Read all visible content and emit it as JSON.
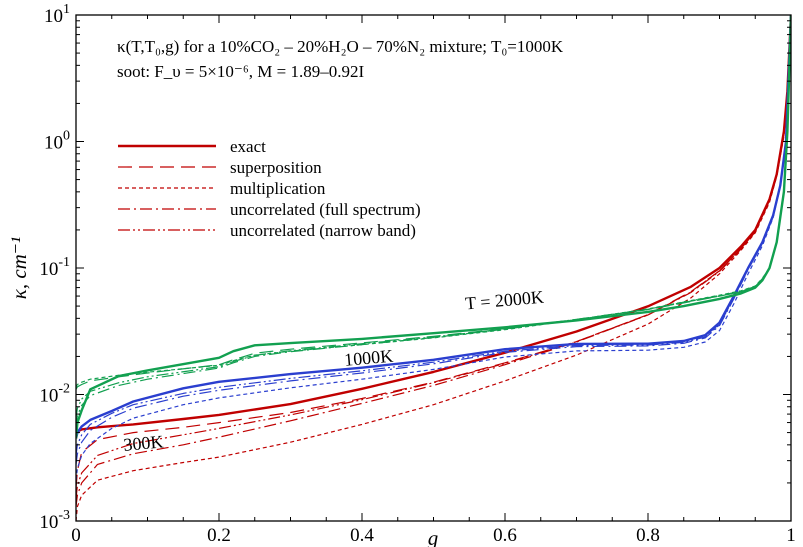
{
  "chart_data": {
    "type": "line",
    "title_lines": [
      "κ(T,T₀,g) for a 10%CO₂ – 20%H₂O – 70%N₂ mixture; T₀=1000K",
      "soot: F_υ = 5×10⁻⁶, M = 1.89–0.92I"
    ],
    "xlabel": "g",
    "ylabel": "κ, cm⁻¹",
    "xlim": [
      0,
      1
    ],
    "ylim": [
      0.001,
      10
    ],
    "yscale": "log",
    "grid": false,
    "x_ticks": [
      {
        "value": 0,
        "label": "0"
      },
      {
        "value": 0.2,
        "label": "0.2"
      },
      {
        "value": 0.4,
        "label": "0.4"
      },
      {
        "value": 0.6,
        "label": "0.6"
      },
      {
        "value": 0.8,
        "label": "0.8"
      },
      {
        "value": 1,
        "label": "1"
      }
    ],
    "y_ticks": [
      {
        "value": 0.001,
        "base": "10",
        "exp": "-3"
      },
      {
        "value": 0.01,
        "base": "10",
        "exp": "-2"
      },
      {
        "value": 0.1,
        "base": "10",
        "exp": "-1"
      },
      {
        "value": 1,
        "base": "10",
        "exp": "0"
      },
      {
        "value": 10,
        "base": "10",
        "exp": "1"
      }
    ],
    "legend_position": "upper-left",
    "legend": [
      {
        "label": "exact",
        "dash": "solid"
      },
      {
        "label": "superposition",
        "dash": "long-dash"
      },
      {
        "label": "multiplication",
        "dash": "short-dash"
      },
      {
        "label": "uncorrelated (full spectrum)",
        "dash": "dash-dot"
      },
      {
        "label": "uncorrelated (narrow band)",
        "dash": "dash-dot-dot"
      }
    ],
    "curve_labels": [
      {
        "text": "T = 2000K",
        "x": 0.6,
        "y": 0.05,
        "color": "#000000"
      },
      {
        "text": "1000K",
        "x": 0.41,
        "y": 0.0175,
        "color": "#000000"
      },
      {
        "text": "300K",
        "x": 0.095,
        "y": 0.0037,
        "color": "#000000"
      }
    ],
    "series": [
      {
        "temperature": "300K",
        "method": "exact",
        "color": "#c00000",
        "dash": "solid",
        "width": 2.4,
        "x": [
          0,
          0.002,
          0.008,
          0.03,
          0.08,
          0.15,
          0.2,
          0.3,
          0.4,
          0.5,
          0.6,
          0.7,
          0.8,
          0.86,
          0.9,
          0.93,
          0.95,
          0.97,
          0.98,
          0.99,
          0.995,
          1.0
        ],
        "y": [
          0.0045,
          0.0051,
          0.0053,
          0.0055,
          0.0058,
          0.0064,
          0.0069,
          0.0084,
          0.0111,
          0.0151,
          0.0214,
          0.0315,
          0.0498,
          0.071,
          0.1,
          0.148,
          0.2,
          0.35,
          0.55,
          1.2,
          2.5,
          10
        ]
      },
      {
        "temperature": "300K",
        "method": "superposition",
        "color": "#c00000",
        "dash": "long-dash",
        "width": 1.2,
        "x": [
          0,
          0.002,
          0.008,
          0.03,
          0.08,
          0.15,
          0.2,
          0.3,
          0.4,
          0.5,
          0.6,
          0.7,
          0.8,
          0.86,
          0.9,
          0.93,
          0.95,
          0.97,
          0.98,
          0.99,
          0.995,
          1.0
        ],
        "y": [
          0.0018,
          0.0025,
          0.0035,
          0.0044,
          0.005,
          0.0055,
          0.006,
          0.0072,
          0.0093,
          0.0125,
          0.0178,
          0.0262,
          0.0428,
          0.065,
          0.095,
          0.142,
          0.195,
          0.34,
          0.54,
          1.15,
          2.4,
          10
        ]
      },
      {
        "temperature": "300K",
        "method": "multiplication",
        "color": "#c00000",
        "dash": "short-dash",
        "width": 1.2,
        "x": [
          0,
          0.002,
          0.008,
          0.03,
          0.08,
          0.15,
          0.2,
          0.3,
          0.4,
          0.5,
          0.6,
          0.7,
          0.8,
          0.86,
          0.9,
          0.93,
          0.95,
          0.97,
          0.98,
          0.99,
          0.995,
          1.0
        ],
        "y": [
          0.001,
          0.0013,
          0.0016,
          0.0021,
          0.0025,
          0.0029,
          0.0032,
          0.0042,
          0.0058,
          0.0083,
          0.0128,
          0.0205,
          0.036,
          0.058,
          0.09,
          0.138,
          0.19,
          0.33,
          0.53,
          1.1,
          2.3,
          10
        ]
      },
      {
        "temperature": "300K",
        "method": "uncorrelated (full spectrum)",
        "color": "#c00000",
        "dash": "dash-dot",
        "width": 1.2,
        "x": [
          0,
          0.002,
          0.008,
          0.03,
          0.08,
          0.15,
          0.2,
          0.3,
          0.4,
          0.5,
          0.6,
          0.7,
          0.8,
          0.86,
          0.9,
          0.93,
          0.95,
          0.97,
          0.98,
          0.99,
          0.995,
          1.0
        ],
        "y": [
          0.0013,
          0.0016,
          0.002,
          0.0028,
          0.0034,
          0.004,
          0.0046,
          0.0062,
          0.0085,
          0.0118,
          0.0172,
          0.026,
          0.0425,
          0.064,
          0.094,
          0.141,
          0.193,
          0.34,
          0.54,
          1.15,
          2.4,
          10
        ]
      },
      {
        "temperature": "300K",
        "method": "uncorrelated (narrow band)",
        "color": "#c00000",
        "dash": "dash-dot-dot",
        "width": 1.2,
        "x": [
          0,
          0.002,
          0.008,
          0.03,
          0.08,
          0.15,
          0.2,
          0.3,
          0.4,
          0.5,
          0.6,
          0.7,
          0.8,
          0.86,
          0.9,
          0.93,
          0.95,
          0.97,
          0.98,
          0.99,
          0.995,
          1.0
        ],
        "y": [
          0.0015,
          0.0019,
          0.0024,
          0.0033,
          0.0041,
          0.0048,
          0.0054,
          0.0069,
          0.0091,
          0.0124,
          0.0176,
          0.0262,
          0.0427,
          0.0645,
          0.095,
          0.142,
          0.194,
          0.34,
          0.54,
          1.15,
          2.4,
          10
        ]
      },
      {
        "temperature": "1000K",
        "method": "exact",
        "color": "#2b3fcf",
        "dash": "solid",
        "width": 2.4,
        "x": [
          0,
          0.002,
          0.008,
          0.02,
          0.05,
          0.08,
          0.15,
          0.2,
          0.3,
          0.4,
          0.5,
          0.6,
          0.7,
          0.8,
          0.85,
          0.88,
          0.9,
          0.92,
          0.94,
          0.96,
          0.975,
          0.985,
          0.993,
          1.0
        ],
        "y": [
          0.0045,
          0.005,
          0.0056,
          0.0063,
          0.0074,
          0.0088,
          0.0112,
          0.0126,
          0.0145,
          0.0163,
          0.0188,
          0.0228,
          0.0251,
          0.0252,
          0.0265,
          0.0295,
          0.037,
          0.06,
          0.1,
          0.16,
          0.26,
          0.45,
          1.0,
          10
        ]
      },
      {
        "temperature": "1000K",
        "method": "superposition",
        "color": "#2b3fcf",
        "dash": "long-dash",
        "width": 1.2,
        "x": [
          0,
          0.002,
          0.008,
          0.02,
          0.05,
          0.08,
          0.15,
          0.2,
          0.3,
          0.4,
          0.5,
          0.6,
          0.7,
          0.8,
          0.85,
          0.88,
          0.9,
          0.92,
          0.94,
          0.96,
          0.975,
          0.985,
          0.993,
          1.0
        ],
        "y": [
          0.0045,
          0.005,
          0.0056,
          0.0063,
          0.0074,
          0.0088,
          0.0112,
          0.0126,
          0.0145,
          0.0163,
          0.0188,
          0.0228,
          0.0251,
          0.0252,
          0.0263,
          0.029,
          0.036,
          0.058,
          0.098,
          0.158,
          0.26,
          0.45,
          1.0,
          10
        ]
      },
      {
        "temperature": "1000K",
        "method": "multiplication",
        "color": "#2b3fcf",
        "dash": "short-dash",
        "width": 1.2,
        "x": [
          0,
          0.002,
          0.008,
          0.02,
          0.05,
          0.08,
          0.15,
          0.2,
          0.3,
          0.4,
          0.5,
          0.6,
          0.7,
          0.8,
          0.85,
          0.88,
          0.9,
          0.92,
          0.94,
          0.96,
          0.975,
          0.985,
          0.993,
          1.0
        ],
        "y": [
          0.0021,
          0.0026,
          0.0033,
          0.0041,
          0.0054,
          0.0065,
          0.0083,
          0.0094,
          0.0113,
          0.0132,
          0.0158,
          0.0198,
          0.0221,
          0.0224,
          0.0236,
          0.026,
          0.032,
          0.052,
          0.09,
          0.15,
          0.25,
          0.44,
          1.0,
          10
        ]
      },
      {
        "temperature": "1000K",
        "method": "uncorrelated (full spectrum)",
        "color": "#2b3fcf",
        "dash": "dash-dot",
        "width": 1.2,
        "x": [
          0,
          0.002,
          0.008,
          0.02,
          0.05,
          0.08,
          0.15,
          0.2,
          0.3,
          0.4,
          0.5,
          0.6,
          0.7,
          0.8,
          0.85,
          0.88,
          0.9,
          0.92,
          0.94,
          0.96,
          0.975,
          0.985,
          0.993,
          1.0
        ],
        "y": [
          0.0028,
          0.0034,
          0.0042,
          0.0052,
          0.0066,
          0.0078,
          0.0097,
          0.0108,
          0.0128,
          0.0148,
          0.0175,
          0.0215,
          0.0239,
          0.0242,
          0.0254,
          0.028,
          0.035,
          0.057,
          0.097,
          0.157,
          0.26,
          0.45,
          1.0,
          10
        ]
      },
      {
        "temperature": "1000K",
        "method": "uncorrelated (narrow band)",
        "color": "#2b3fcf",
        "dash": "dash-dot-dot",
        "width": 1.2,
        "x": [
          0,
          0.002,
          0.008,
          0.02,
          0.05,
          0.08,
          0.15,
          0.2,
          0.3,
          0.4,
          0.5,
          0.6,
          0.7,
          0.8,
          0.85,
          0.88,
          0.9,
          0.92,
          0.94,
          0.96,
          0.975,
          0.985,
          0.993,
          1.0
        ],
        "y": [
          0.0033,
          0.004,
          0.0048,
          0.0058,
          0.0071,
          0.0083,
          0.0102,
          0.0114,
          0.0134,
          0.0154,
          0.018,
          0.022,
          0.0244,
          0.0246,
          0.0258,
          0.0285,
          0.0355,
          0.058,
          0.098,
          0.158,
          0.26,
          0.45,
          1.0,
          10
        ]
      },
      {
        "temperature": "2000K",
        "method": "exact",
        "color": "#12a050",
        "dash": "solid",
        "width": 2.4,
        "x": [
          0,
          0.002,
          0.008,
          0.02,
          0.06,
          0.1,
          0.2,
          0.22,
          0.25,
          0.3,
          0.4,
          0.5,
          0.6,
          0.7,
          0.8,
          0.85,
          0.9,
          0.93,
          0.95,
          0.96,
          0.97,
          0.98,
          0.99,
          0.995,
          1.0
        ],
        "y": [
          0.0045,
          0.006,
          0.0075,
          0.011,
          0.014,
          0.0155,
          0.0195,
          0.022,
          0.0245,
          0.0255,
          0.0275,
          0.0305,
          0.034,
          0.0385,
          0.045,
          0.05,
          0.057,
          0.063,
          0.07,
          0.08,
          0.1,
          0.16,
          0.4,
          1.2,
          10
        ]
      },
      {
        "temperature": "2000K",
        "method": "superposition",
        "color": "#12a050",
        "dash": "long-dash",
        "width": 1.2,
        "x": [
          0,
          0.002,
          0.008,
          0.02,
          0.06,
          0.1,
          0.2,
          0.22,
          0.25,
          0.3,
          0.4,
          0.5,
          0.6,
          0.7,
          0.8,
          0.85,
          0.9,
          0.93,
          0.95,
          0.96,
          0.97,
          0.98,
          0.99,
          0.995,
          1.0
        ],
        "y": [
          0.011,
          0.0115,
          0.012,
          0.0128,
          0.0138,
          0.0148,
          0.0172,
          0.0188,
          0.0212,
          0.0228,
          0.0256,
          0.0288,
          0.0332,
          0.0392,
          0.047,
          0.053,
          0.06,
          0.065,
          0.071,
          0.082,
          0.1,
          0.16,
          0.4,
          1.2,
          10
        ]
      },
      {
        "temperature": "2000K",
        "method": "multiplication",
        "color": "#12a050",
        "dash": "short-dash",
        "width": 1.2,
        "x": [
          0,
          0.002,
          0.008,
          0.02,
          0.06,
          0.1,
          0.2,
          0.22,
          0.25,
          0.3,
          0.4,
          0.5,
          0.6,
          0.7,
          0.8,
          0.85,
          0.9,
          0.93,
          0.95,
          0.96,
          0.97,
          0.98,
          0.99,
          0.995,
          1.0
        ],
        "y": [
          0.0115,
          0.012,
          0.0125,
          0.0132,
          0.0142,
          0.015,
          0.017,
          0.0185,
          0.0205,
          0.022,
          0.0248,
          0.028,
          0.0325,
          0.039,
          0.0475,
          0.054,
          0.061,
          0.066,
          0.072,
          0.083,
          0.1,
          0.16,
          0.4,
          1.2,
          10
        ]
      },
      {
        "temperature": "2000K",
        "method": "uncorrelated (full spectrum)",
        "color": "#12a050",
        "dash": "dash-dot",
        "width": 1.2,
        "x": [
          0,
          0.002,
          0.008,
          0.02,
          0.06,
          0.1,
          0.2,
          0.22,
          0.25,
          0.3,
          0.4,
          0.5,
          0.6,
          0.7,
          0.8,
          0.85,
          0.9,
          0.93,
          0.95,
          0.96,
          0.97,
          0.98,
          0.99,
          0.995,
          1.0
        ],
        "y": [
          0.0055,
          0.0068,
          0.0082,
          0.0098,
          0.0118,
          0.0132,
          0.0162,
          0.0178,
          0.02,
          0.0218,
          0.0248,
          0.0282,
          0.0328,
          0.039,
          0.047,
          0.0535,
          0.06,
          0.065,
          0.071,
          0.082,
          0.1,
          0.16,
          0.4,
          1.2,
          10
        ]
      },
      {
        "temperature": "2000K",
        "method": "uncorrelated (narrow band)",
        "color": "#12a050",
        "dash": "dash-dot-dot",
        "width": 1.2,
        "x": [
          0,
          0.002,
          0.008,
          0.02,
          0.06,
          0.1,
          0.2,
          0.22,
          0.25,
          0.3,
          0.4,
          0.5,
          0.6,
          0.7,
          0.8,
          0.85,
          0.9,
          0.93,
          0.95,
          0.96,
          0.97,
          0.98,
          0.99,
          0.995,
          1.0
        ],
        "y": [
          0.0065,
          0.0078,
          0.0092,
          0.0106,
          0.0124,
          0.0138,
          0.0166,
          0.0182,
          0.0204,
          0.0222,
          0.0252,
          0.0285,
          0.033,
          0.0392,
          0.0472,
          0.0538,
          0.0605,
          0.0655,
          0.0715,
          0.0825,
          0.1,
          0.16,
          0.4,
          1.2,
          10
        ]
      }
    ]
  }
}
